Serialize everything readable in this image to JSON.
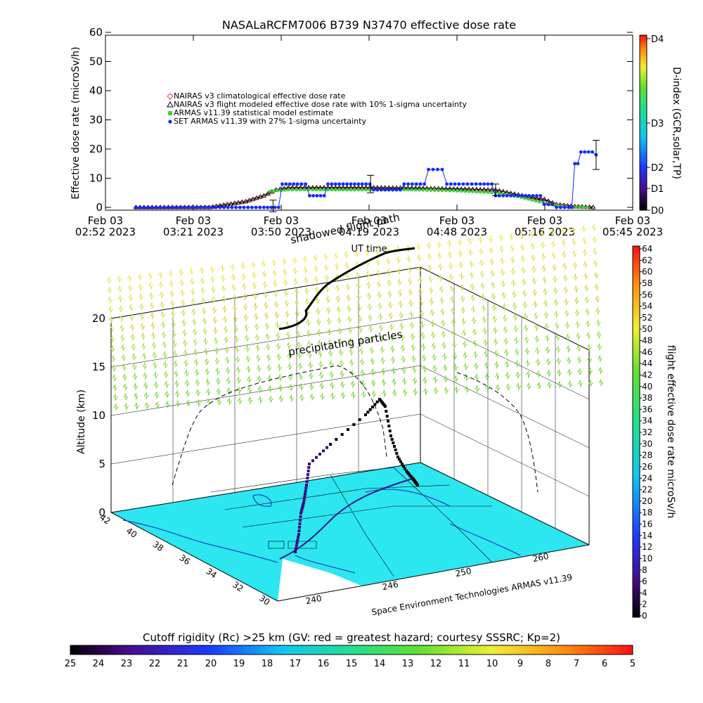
{
  "chart_data": [
    {
      "type": "line",
      "title": "NASALaRCFM7006  B739 N37470 effective dose rate",
      "xlabel": "UT time",
      "ylabel": "Effective dose rate (microSv/h)",
      "ylim": [
        0,
        60
      ],
      "y_ticks": [
        "0",
        "10",
        "20",
        "30",
        "40",
        "50",
        "60"
      ],
      "x_ticks": [
        {
          "date": "Feb 03",
          "time": "02:52 2023"
        },
        {
          "date": "Feb 03",
          "time": "03:21 2023"
        },
        {
          "date": "Feb 03",
          "time": "03:50 2023"
        },
        {
          "date": "Feb 03",
          "time": "04:19 2023"
        },
        {
          "date": "Feb 03",
          "time": "04:48 2023"
        },
        {
          "date": "Feb 03",
          "time": "05:16 2023"
        },
        {
          "date": "Feb 03",
          "time": "05:45 2023"
        }
      ],
      "x_range": [
        "02:52",
        "05:45"
      ],
      "legend_placement": "upper-left",
      "series": [
        {
          "name": "NAIRAS v3 climatological effective dose rate",
          "color": "#e04040",
          "marker": "diamond",
          "x": [
            "03:02",
            "03:10",
            "03:18",
            "03:26",
            "03:32",
            "03:38",
            "03:44",
            "03:48",
            "03:52",
            "04:00",
            "04:10",
            "04:20",
            "04:30",
            "04:40",
            "04:50",
            "05:00",
            "05:10",
            "05:16",
            "05:20",
            "05:26",
            "05:32"
          ],
          "values": [
            0,
            0,
            0,
            0,
            1,
            2,
            4,
            6,
            6.5,
            6.5,
            6.5,
            6.5,
            6.5,
            6,
            6,
            5.5,
            3.5,
            2.5,
            1,
            0.3,
            0
          ]
        },
        {
          "name": "NAIRAS v3 flight modeled effective dose rate with 10% 1-sigma uncertainty",
          "color": "#000000",
          "marker": "triangle",
          "x": [
            "03:02",
            "03:10",
            "03:18",
            "03:26",
            "03:32",
            "03:38",
            "03:44",
            "03:48",
            "03:52",
            "04:00",
            "04:10",
            "04:20",
            "04:30",
            "04:40",
            "04:50",
            "05:00",
            "05:10",
            "05:16",
            "05:20",
            "05:26",
            "05:32"
          ],
          "values": [
            0,
            0,
            0,
            0,
            1,
            2,
            4,
            6,
            6.8,
            6.8,
            6.8,
            6.8,
            6.7,
            6.5,
            6.3,
            6,
            3.8,
            2.8,
            1,
            0.3,
            0
          ]
        },
        {
          "name": "ARMAS v11.39 statistical model estimate",
          "color": "#3cd23c",
          "marker": "square",
          "x": [
            "03:46",
            "03:52",
            "04:00",
            "04:10",
            "04:20",
            "04:30",
            "04:40",
            "04:50",
            "05:00",
            "05:06",
            "05:12",
            "05:18",
            "05:24",
            "05:30"
          ],
          "values": [
            5.5,
            6,
            6,
            6,
            6,
            6,
            6,
            5.5,
            5,
            4,
            2.5,
            1,
            0,
            0
          ]
        },
        {
          "name": "SET ARMAS v11.39 with 27% 1-sigma uncertainty",
          "color": "#1428ff",
          "marker": "circle",
          "x": [
            "03:02",
            "03:44",
            "03:50",
            "03:55",
            "03:59",
            "04:05",
            "04:10",
            "04:15",
            "04:20",
            "04:30",
            "04:38",
            "04:41",
            "04:44",
            "04:48",
            "04:55",
            "05:00",
            "05:05",
            "05:11",
            "05:16",
            "05:20",
            "05:24",
            "05:26",
            "05:28",
            "05:33"
          ],
          "values": [
            0,
            0,
            8,
            8,
            4,
            8,
            8,
            8,
            6,
            8,
            13,
            13,
            8,
            8,
            8,
            4,
            4,
            4,
            1,
            0,
            0,
            15,
            19,
            18
          ]
        }
      ],
      "error_bars": [
        {
          "x": "03:47",
          "y": 0.5,
          "err": 2
        },
        {
          "x": "04:19",
          "y": 8,
          "err": 3
        },
        {
          "x": "05:00",
          "y": 6,
          "err": 2
        },
        {
          "x": "05:33",
          "y": 18,
          "err": 5
        }
      ],
      "right_axis": {
        "label": "D-index (GCR,solar,TP)",
        "ticks": [
          "D0",
          "D1",
          "D2",
          "D3",
          "D4"
        ]
      }
    },
    {
      "type": "scatter",
      "annotations": [
        "shadowed flight path",
        "precipitating particles"
      ],
      "zlabel": "Altitude (km)",
      "zlim": [
        0,
        20
      ],
      "z_ticks": [
        "0",
        "5",
        "10",
        "15",
        "20"
      ],
      "lat_ticks": [
        "42",
        "40",
        "38",
        "36",
        "34",
        "32",
        "30"
      ],
      "lon_ticks": [
        "240",
        "246",
        "250",
        "260"
      ],
      "credit": "Space Environment Technologies ARMAS v11.39",
      "flight_path": {
        "note": "altitude profile of the flight, from takeoff to landing",
        "altitude_km": [
          0,
          2,
          4.5,
          6,
          8.5,
          10.5,
          11.5,
          12.5,
          13,
          12.5,
          10,
          7.5,
          5,
          2,
          0.5
        ]
      },
      "colorbar_right": {
        "label": "flight effective dose rate microSv/h",
        "ticks": [
          "0",
          "2",
          "4",
          "6",
          "8",
          "10",
          "12",
          "14",
          "16",
          "18",
          "20",
          "22",
          "24",
          "26",
          "28",
          "30",
          "32",
          "34",
          "36",
          "38",
          "40",
          "42",
          "44",
          "46",
          "48",
          "50",
          "52",
          "54",
          "56",
          "58",
          "60",
          "62",
          "64"
        ]
      },
      "colorbar_bottom": {
        "label": "Cutoff rigidity (Rc) >25 km (GV: red = greatest hazard; courtesy SSSRC; Kp=2)",
        "ticks": [
          "25",
          "24",
          "23",
          "22",
          "21",
          "20",
          "19",
          "18",
          "17",
          "16",
          "15",
          "14",
          "13",
          "12",
          "11",
          "10",
          "9",
          "8",
          "7",
          "6",
          "5"
        ]
      },
      "colors": {
        "ground": "#2ce6f0",
        "coast": "#2040c8",
        "sky_top": "#e8e850",
        "sky_bottom": "#6cd43c"
      }
    }
  ]
}
